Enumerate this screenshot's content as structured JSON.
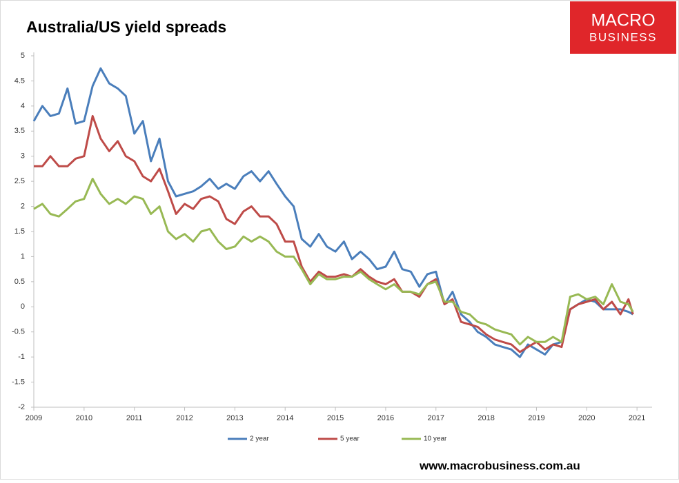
{
  "chart_data": {
    "type": "line",
    "title": "Australia/US yield spreads",
    "logo": {
      "line1": "MACRO",
      "line2": "BUSINESS"
    },
    "footer": "www.macrobusiness.com.au",
    "x": [
      2009,
      2009.17,
      2009.33,
      2009.5,
      2009.67,
      2009.83,
      2010,
      2010.17,
      2010.33,
      2010.5,
      2010.67,
      2010.83,
      2011,
      2011.17,
      2011.33,
      2011.5,
      2011.67,
      2011.83,
      2012,
      2012.17,
      2012.33,
      2012.5,
      2012.67,
      2012.83,
      2013,
      2013.17,
      2013.33,
      2013.5,
      2013.67,
      2013.83,
      2014,
      2014.17,
      2014.33,
      2014.5,
      2014.67,
      2014.83,
      2015,
      2015.17,
      2015.33,
      2015.5,
      2015.67,
      2015.83,
      2016,
      2016.17,
      2016.33,
      2016.5,
      2016.67,
      2016.83,
      2017,
      2017.17,
      2017.33,
      2017.5,
      2017.67,
      2017.83,
      2018,
      2018.17,
      2018.33,
      2018.5,
      2018.67,
      2018.83,
      2019,
      2019.17,
      2019.33,
      2019.5,
      2019.67,
      2019.83,
      2020,
      2020.17,
      2020.33,
      2020.5,
      2020.67,
      2020.83,
      2020.92
    ],
    "series": [
      {
        "name": "2 year",
        "color": "#4a7ebb",
        "values": [
          3.7,
          4.0,
          3.8,
          3.85,
          4.35,
          3.65,
          3.7,
          4.4,
          4.75,
          4.45,
          4.35,
          4.2,
          3.45,
          3.7,
          2.9,
          3.35,
          2.5,
          2.2,
          2.25,
          2.3,
          2.4,
          2.55,
          2.35,
          2.45,
          2.35,
          2.6,
          2.7,
          2.5,
          2.7,
          2.45,
          2.2,
          2.0,
          1.35,
          1.2,
          1.45,
          1.2,
          1.1,
          1.3,
          0.95,
          1.1,
          0.95,
          0.75,
          0.8,
          1.1,
          0.75,
          0.7,
          0.4,
          0.65,
          0.7,
          0.05,
          0.3,
          -0.15,
          -0.3,
          -0.5,
          -0.6,
          -0.75,
          -0.8,
          -0.85,
          -1.0,
          -0.75,
          -0.85,
          -0.95,
          -0.75,
          -0.7,
          -0.05,
          0.05,
          0.15,
          0.1,
          -0.05,
          -0.05,
          -0.05,
          -0.1,
          -0.15
        ]
      },
      {
        "name": "5 year",
        "color": "#be4b48",
        "values": [
          2.8,
          2.8,
          3.0,
          2.8,
          2.8,
          2.95,
          3.0,
          3.8,
          3.35,
          3.1,
          3.3,
          3.0,
          2.9,
          2.6,
          2.5,
          2.75,
          2.3,
          1.85,
          2.05,
          1.95,
          2.15,
          2.2,
          2.1,
          1.75,
          1.65,
          1.9,
          2.0,
          1.8,
          1.8,
          1.65,
          1.3,
          1.3,
          0.8,
          0.5,
          0.7,
          0.6,
          0.6,
          0.65,
          0.6,
          0.75,
          0.6,
          0.5,
          0.45,
          0.55,
          0.3,
          0.3,
          0.2,
          0.45,
          0.55,
          0.05,
          0.15,
          -0.3,
          -0.35,
          -0.4,
          -0.55,
          -0.65,
          -0.7,
          -0.75,
          -0.9,
          -0.8,
          -0.7,
          -0.85,
          -0.75,
          -0.8,
          -0.05,
          0.05,
          0.1,
          0.15,
          -0.05,
          0.1,
          -0.15,
          0.15,
          -0.15
        ]
      },
      {
        "name": "10 year",
        "color": "#98b954",
        "values": [
          1.95,
          2.05,
          1.85,
          1.8,
          1.95,
          2.1,
          2.15,
          2.55,
          2.25,
          2.05,
          2.15,
          2.05,
          2.2,
          2.15,
          1.85,
          2.0,
          1.5,
          1.35,
          1.45,
          1.3,
          1.5,
          1.55,
          1.3,
          1.15,
          1.2,
          1.4,
          1.3,
          1.4,
          1.3,
          1.1,
          1.0,
          1.0,
          0.75,
          0.45,
          0.65,
          0.55,
          0.55,
          0.6,
          0.6,
          0.7,
          0.55,
          0.45,
          0.35,
          0.45,
          0.3,
          0.3,
          0.25,
          0.45,
          0.5,
          0.1,
          0.1,
          -0.1,
          -0.15,
          -0.3,
          -0.35,
          -0.45,
          -0.5,
          -0.55,
          -0.75,
          -0.6,
          -0.7,
          -0.7,
          -0.6,
          -0.7,
          0.2,
          0.25,
          0.15,
          0.2,
          0.05,
          0.45,
          0.1,
          0.05,
          -0.1
        ]
      }
    ],
    "xlim": [
      2009,
      2021.3
    ],
    "xticks": [
      2009,
      2010,
      2011,
      2012,
      2013,
      2014,
      2015,
      2016,
      2017,
      2018,
      2019,
      2020,
      2021
    ],
    "ylim": [
      -2,
      5
    ],
    "yticks": [
      5,
      4.5,
      4,
      3.5,
      3,
      2.5,
      2,
      1.5,
      1,
      0.5,
      0,
      -0.5,
      -1,
      -1.5,
      -2
    ],
    "grid": false,
    "legend": "bottom"
  }
}
